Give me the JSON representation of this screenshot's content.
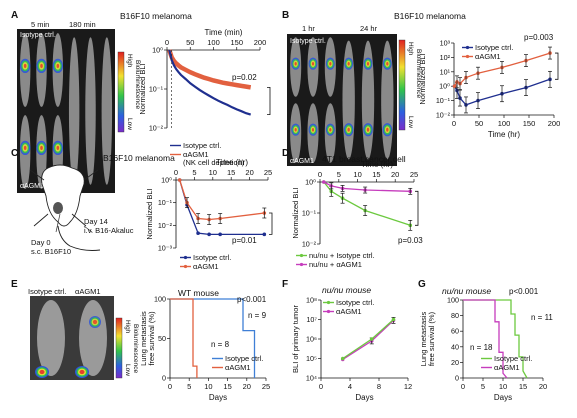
{
  "colors": {
    "isotype": "#1f2f8f",
    "agm1": "#e2603f",
    "alt_isotype": "#6cc93f",
    "alt_agm1": "#c63dbd"
  },
  "panel_letters": {
    "A": "A",
    "B": "B",
    "C": "C",
    "D": "D",
    "E": "E",
    "F": "F",
    "G": "G"
  },
  "panels": {
    "A": {
      "title": "B16F10 melanoma",
      "image_labels": {
        "t1": "5 min",
        "t2": "180 min",
        "top": "Isotype ctrl.",
        "bottom": "αAGM1"
      },
      "colorbar": {
        "title": "Bioluminescence",
        "high": "High",
        "low": "Low"
      },
      "annotation": "p=0.02"
    },
    "B": {
      "title": "B16F10 melanoma",
      "image_labels": {
        "t1": "1 hr",
        "t2": "24 hr",
        "top": "Isotype ctrl.",
        "bottom": "αAGM1"
      },
      "colorbar": {
        "title": "Bioluminescence",
        "high": "High",
        "low": "Low"
      },
      "annotation": "p=0.003"
    },
    "C": {
      "title": "B16F10 melanoma",
      "cartoon_labels": {
        "day0": "Day 0",
        "day0_sub": "s.c. B16F10",
        "day14": "Day 14",
        "day14_sub": "i.v. B16-Akaluc"
      },
      "annotation": "p=0.01"
    },
    "D": {
      "title": "4T1 breast cancer cell",
      "annotation": "p=0.03"
    },
    "E": {
      "title": "WT mouse",
      "image_labels": {
        "left": "Isotype ctrl.",
        "right": "αAGM1"
      },
      "colorbar": {
        "title": "Bioluminescence",
        "high": "High",
        "low": "Low"
      },
      "annotation": "p<0.001",
      "n_labels": {
        "isotype": "n = 9",
        "agm1": "n = 8"
      }
    },
    "F": {
      "title": "nu/nu mouse"
    },
    "G": {
      "title": "nu/nu mouse",
      "annotation": "p<0.001",
      "n_labels": {
        "isotype": "n = 11",
        "agm1": "n = 18"
      }
    }
  },
  "chart_data": [
    {
      "id": "A",
      "type": "line",
      "xlabel": "Time (min)",
      "ylabel": "Normalized BLI",
      "x_ticks": [
        0,
        50,
        100,
        150,
        200
      ],
      "y_ticks": [
        "10⁻²",
        "10⁻¹",
        "10⁰"
      ],
      "xlim": [
        0,
        200
      ],
      "ylim": [
        0.01,
        1
      ],
      "yscale": "log",
      "x_axis_position": "top",
      "series": [
        {
          "name": "Isotype ctrl.",
          "x": [
            5,
            10,
            15,
            20,
            25,
            30,
            40,
            50,
            60,
            70,
            80,
            90,
            100,
            110,
            120,
            130,
            140,
            150,
            160,
            170,
            180
          ],
          "y": [
            1,
            0.55,
            0.4,
            0.32,
            0.27,
            0.23,
            0.18,
            0.14,
            0.115,
            0.095,
            0.08,
            0.068,
            0.058,
            0.05,
            0.044,
            0.039,
            0.034,
            0.03,
            0.027,
            0.024,
            0.022
          ]
        },
        {
          "name": "αAGM1\n(NK cell depletion)",
          "x": [
            5,
            10,
            15,
            20,
            25,
            30,
            40,
            50,
            60,
            70,
            80,
            90,
            100,
            110,
            120,
            130,
            140,
            150,
            160,
            170,
            180
          ],
          "y": [
            1,
            0.65,
            0.52,
            0.45,
            0.4,
            0.36,
            0.31,
            0.27,
            0.24,
            0.215,
            0.195,
            0.18,
            0.165,
            0.155,
            0.145,
            0.138,
            0.132,
            0.126,
            0.12,
            0.115,
            0.11
          ]
        }
      ]
    },
    {
      "id": "B",
      "type": "line",
      "xlabel": "Time (hr)",
      "ylabel": "Normalized BLI",
      "x_ticks": [
        0,
        50,
        100,
        150,
        200
      ],
      "y_ticks": [
        "10⁻²",
        "10⁻¹",
        "10⁰",
        "10¹",
        "10²",
        "10³"
      ],
      "xlim": [
        0,
        200
      ],
      "ylim": [
        0.01,
        1000
      ],
      "yscale": "log",
      "series": [
        {
          "name": "Isotype ctrl.",
          "x": [
            1,
            6,
            12,
            24,
            48,
            96,
            144,
            192
          ],
          "y": [
            1,
            0.5,
            0.15,
            0.05,
            0.1,
            0.3,
            0.8,
            3
          ]
        },
        {
          "name": "αAGM1",
          "x": [
            1,
            6,
            12,
            24,
            48,
            96,
            144,
            192
          ],
          "y": [
            1,
            2,
            1.5,
            4,
            8,
            20,
            60,
            200
          ]
        }
      ]
    },
    {
      "id": "C",
      "type": "line",
      "xlabel": "Time (hr)",
      "ylabel": "Normalized BLI",
      "x_ticks": [
        0,
        5,
        10,
        15,
        20,
        25
      ],
      "y_ticks": [
        "10⁻³",
        "10⁻²",
        "10⁻¹",
        "10⁰"
      ],
      "xlim": [
        0,
        25
      ],
      "ylim": [
        0.001,
        1
      ],
      "yscale": "log",
      "x_axis_position": "top",
      "series": [
        {
          "name": "Isotype ctrl.",
          "x": [
            1,
            3,
            6,
            9,
            12,
            24
          ],
          "y": [
            1,
            0.08,
            0.0045,
            0.004,
            0.004,
            0.004
          ]
        },
        {
          "name": "αAGM1",
          "x": [
            1,
            3,
            6,
            9,
            12,
            24
          ],
          "y": [
            1,
            0.1,
            0.02,
            0.018,
            0.02,
            0.035
          ]
        }
      ]
    },
    {
      "id": "D",
      "type": "line",
      "xlabel": "Time (hr)",
      "ylabel": "Normalized BLI",
      "x_ticks": [
        0,
        5,
        10,
        15,
        20,
        25
      ],
      "y_ticks": [
        "10⁻²",
        "10⁻¹",
        "10⁰"
      ],
      "xlim": [
        0,
        25
      ],
      "ylim": [
        0.01,
        1
      ],
      "yscale": "log",
      "x_axis_position": "top",
      "series": [
        {
          "name": "nu/nu + Isotype ctrl.",
          "x": [
            1,
            3,
            6,
            12,
            24
          ],
          "y": [
            1,
            0.5,
            0.3,
            0.12,
            0.04
          ]
        },
        {
          "name": "nu/nu + αAGM1",
          "x": [
            1,
            3,
            6,
            12,
            24
          ],
          "y": [
            1,
            0.75,
            0.62,
            0.55,
            0.5
          ]
        }
      ]
    },
    {
      "id": "E",
      "type": "line",
      "xlabel": "Days",
      "ylabel": "Lung metastasis\nfree survival (%)",
      "x_ticks": [
        0,
        5,
        10,
        15,
        20,
        25
      ],
      "y_ticks": [
        0,
        50,
        100
      ],
      "xlim": [
        0,
        25
      ],
      "ylim": [
        0,
        100
      ],
      "series": [
        {
          "name": "Isotype ctrl.",
          "x": [
            0,
            19,
            19,
            22,
            22
          ],
          "y": [
            100,
            100,
            60,
            60,
            0
          ]
        },
        {
          "name": "αAGM1",
          "x": [
            0,
            6,
            6,
            7,
            7
          ],
          "y": [
            100,
            100,
            15,
            15,
            0
          ]
        }
      ]
    },
    {
      "id": "F",
      "type": "line",
      "xlabel": "Days",
      "ylabel": "BLI of primary tumor",
      "x_ticks": [
        0,
        4,
        8,
        12
      ],
      "y_ticks": [
        "10⁴",
        "10⁵",
        "10⁶",
        "10⁷",
        "10⁸"
      ],
      "xlim": [
        0,
        12
      ],
      "ylim": [
        10000,
        100000000
      ],
      "yscale": "log",
      "series": [
        {
          "name": "Isotype ctrl.",
          "x": [
            3,
            7,
            10
          ],
          "y": [
            100000,
            1000000,
            10000000
          ]
        },
        {
          "name": "αAGM1",
          "x": [
            3,
            7,
            10
          ],
          "y": [
            90000,
            800000,
            9000000
          ]
        }
      ]
    },
    {
      "id": "G",
      "type": "line",
      "xlabel": "Days",
      "ylabel": "Lung metastasis\nfree survival (%)",
      "x_ticks": [
        0,
        5,
        10,
        15,
        20
      ],
      "y_ticks": [
        0,
        20,
        40,
        60,
        80,
        100
      ],
      "xlim": [
        0,
        20
      ],
      "ylim": [
        0,
        100
      ],
      "series": [
        {
          "name": "Isotype ctrl.",
          "x": [
            0,
            12,
            12,
            13,
            13,
            14,
            14,
            15,
            15,
            16
          ],
          "y": [
            100,
            100,
            82,
            82,
            55,
            55,
            27,
            27,
            9,
            0
          ]
        },
        {
          "name": "αAGM1",
          "x": [
            0,
            8,
            8,
            9,
            9,
            10,
            10,
            11
          ],
          "y": [
            100,
            100,
            72,
            72,
            33,
            33,
            6,
            0
          ]
        }
      ]
    }
  ]
}
